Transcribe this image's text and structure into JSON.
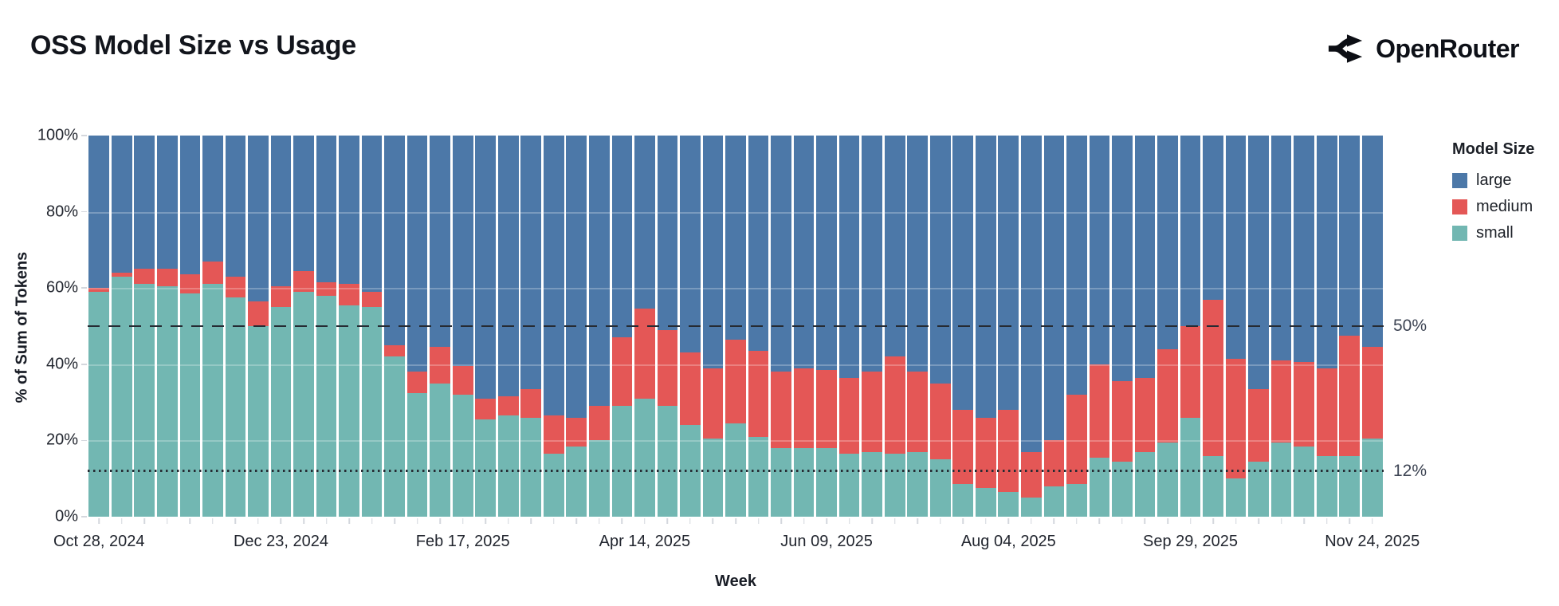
{
  "header": {
    "title": "OSS Model Size vs Usage",
    "brand": "OpenRouter"
  },
  "chart_data": {
    "type": "bar",
    "stacked": true,
    "title": "OSS Model Size vs Usage",
    "xlabel": "Week",
    "ylabel": "% of Sum of Tokens",
    "ylim": [
      0,
      100
    ],
    "grid": false,
    "legend_position": "right",
    "y_ticks": [
      {
        "value": 0,
        "label": "0%"
      },
      {
        "value": 20,
        "label": "20%"
      },
      {
        "value": 40,
        "label": "40%"
      },
      {
        "value": 60,
        "label": "60%"
      },
      {
        "value": 80,
        "label": "80%"
      },
      {
        "value": 100,
        "label": "100%"
      }
    ],
    "x_ticks": [
      {
        "index": 0,
        "label": "Oct 28, 2024"
      },
      {
        "index": 8,
        "label": "Dec 23, 2024"
      },
      {
        "index": 16,
        "label": "Feb 17, 2025"
      },
      {
        "index": 24,
        "label": "Apr 14, 2025"
      },
      {
        "index": 32,
        "label": "Jun 09, 2025"
      },
      {
        "index": 40,
        "label": "Aug 04, 2025"
      },
      {
        "index": 48,
        "label": "Sep 29, 2025"
      },
      {
        "index": 56,
        "label": "Nov 24, 2025"
      }
    ],
    "categories": [
      "2024-10-28",
      "2024-11-04",
      "2024-11-11",
      "2024-11-18",
      "2024-11-25",
      "2024-12-02",
      "2024-12-09",
      "2024-12-16",
      "2024-12-23",
      "2024-12-30",
      "2025-01-06",
      "2025-01-13",
      "2025-01-20",
      "2025-01-27",
      "2025-02-03",
      "2025-02-10",
      "2025-02-17",
      "2025-02-24",
      "2025-03-03",
      "2025-03-10",
      "2025-03-17",
      "2025-03-24",
      "2025-03-31",
      "2025-04-07",
      "2025-04-14",
      "2025-04-21",
      "2025-04-28",
      "2025-05-05",
      "2025-05-12",
      "2025-05-19",
      "2025-05-26",
      "2025-06-02",
      "2025-06-09",
      "2025-06-16",
      "2025-06-23",
      "2025-06-30",
      "2025-07-07",
      "2025-07-14",
      "2025-07-21",
      "2025-07-28",
      "2025-08-04",
      "2025-08-11",
      "2025-08-18",
      "2025-08-25",
      "2025-09-01",
      "2025-09-08",
      "2025-09-15",
      "2025-09-22",
      "2025-09-29",
      "2025-10-06",
      "2025-10-13",
      "2025-10-20",
      "2025-10-27",
      "2025-11-03",
      "2025-11-10",
      "2025-11-17",
      "2025-11-24"
    ],
    "series": [
      {
        "name": "large",
        "color": "#4c78a8",
        "values": [
          40,
          36,
          35,
          35,
          36.5,
          33,
          37,
          43.5,
          39.5,
          35.5,
          38.5,
          39,
          41,
          55,
          62,
          55.5,
          60.5,
          69,
          68.5,
          66.5,
          73.5,
          74,
          71,
          53,
          45.5,
          51,
          57,
          61,
          53.5,
          56.5,
          62,
          61,
          61.5,
          63.5,
          62,
          58,
          62,
          65,
          72,
          74,
          72,
          83,
          80,
          68,
          60,
          64.5,
          63.5,
          56,
          50,
          43,
          58.5,
          66.5,
          59,
          59.5,
          61,
          52.5,
          55.5
        ]
      },
      {
        "name": "medium",
        "color": "#e45756",
        "values": [
          1,
          1,
          4,
          4.5,
          5,
          6,
          5.5,
          6.5,
          5.5,
          5.5,
          3.5,
          5.5,
          4,
          3,
          5.5,
          9.5,
          7.5,
          5.5,
          5,
          7.5,
          10,
          7.5,
          9,
          18,
          23.5,
          20,
          19,
          18.5,
          22,
          22.5,
          20,
          21,
          20.5,
          20,
          21,
          25.5,
          21,
          20,
          19.5,
          18.5,
          21.5,
          12,
          12,
          23.5,
          24.5,
          21,
          19.5,
          24.5,
          24,
          41,
          31.5,
          19,
          21.5,
          22,
          23,
          31.5,
          24
        ]
      },
      {
        "name": "small",
        "color": "#72b7b2",
        "values": [
          59,
          63,
          61,
          60.5,
          58.5,
          61,
          57.5,
          50,
          55,
          59,
          58,
          55.5,
          55,
          42,
          32.5,
          35,
          32,
          25.5,
          26.5,
          26,
          16.5,
          18.5,
          20,
          29,
          31,
          29,
          24,
          20.5,
          24.5,
          21,
          18,
          18,
          18,
          16.5,
          17,
          16.5,
          17,
          15,
          8.5,
          7.5,
          6.5,
          5,
          8,
          8.5,
          15.5,
          14.5,
          17,
          19.5,
          26,
          16,
          10,
          14.5,
          19.5,
          18.5,
          16,
          16,
          20.5
        ]
      }
    ],
    "reference_lines": [
      {
        "value": 50,
        "label": "50%",
        "style": "dashed"
      },
      {
        "value": 12,
        "label": "12%",
        "style": "dotted"
      }
    ],
    "legend": {
      "title": "Model Size",
      "entries": [
        "large",
        "medium",
        "small"
      ]
    }
  }
}
